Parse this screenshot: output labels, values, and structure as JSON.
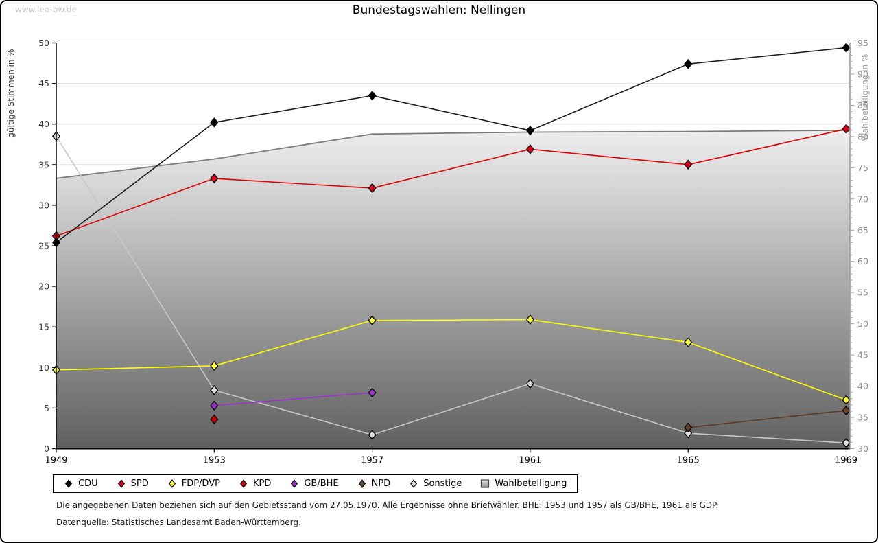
{
  "page": {
    "watermark": "www.leo-bw.de",
    "footnote1": "Die angegebenen Daten beziehen sich auf den Gebietsstand vom 27.05.1970. Alle Ergebnisse ohne Briefwähler. BHE: 1953 und 1957 als GB/BHE, 1961 als GDP.",
    "footnote2": "Datenquelle: Statistisches Landesamt Baden-Württemberg."
  },
  "chart_data": {
    "type": "line",
    "title": "Bundestagswahlen: Nellingen",
    "categories": [
      "1949",
      "1953",
      "1957",
      "1961",
      "1965",
      "1969"
    ],
    "left_axis": {
      "label": "gültige Stimmen in %",
      "min": 0,
      "max": 50,
      "step": 5
    },
    "right_axis": {
      "label": "Wahlbeteiligung in %",
      "min": 30,
      "max": 95,
      "step": 5,
      "minor_step": 1
    },
    "grid": true,
    "legend_position": "bottom",
    "series": [
      {
        "name": "Sonstige",
        "axis": "left",
        "marker": "diamond",
        "color": "#c8c8c8",
        "marker_fill": "#dcdcdc",
        "values": [
          38.5,
          7.2,
          1.7,
          8.0,
          1.9,
          0.7
        ]
      },
      {
        "name": "FDP/DVP",
        "axis": "left",
        "marker": "diamond",
        "color": "#ffff00",
        "marker_fill": "#ffff33",
        "values": [
          9.7,
          10.2,
          15.8,
          15.9,
          13.1,
          6.0
        ]
      },
      {
        "name": "GB/BHE",
        "axis": "left",
        "marker": "diamond",
        "color": "#9c33cc",
        "marker_fill": "#9c33cc",
        "values": [
          null,
          5.3,
          6.9,
          null,
          null,
          null
        ]
      },
      {
        "name": "NPD",
        "axis": "left",
        "marker": "diamond",
        "color": "#5c3a21",
        "marker_fill": "#6b4226",
        "values": [
          null,
          null,
          null,
          null,
          2.6,
          4.7
        ]
      },
      {
        "name": "KPD",
        "axis": "left",
        "marker": "diamond",
        "color": "#bb0000",
        "marker_fill": "#cc0000",
        "values": [
          null,
          3.6,
          null,
          null,
          null,
          null
        ]
      },
      {
        "name": "SPD",
        "axis": "left",
        "marker": "diamond",
        "color": "#dd0000",
        "marker_fill": "#e3001b",
        "values": [
          26.2,
          33.3,
          32.1,
          36.9,
          35.0,
          39.4
        ]
      },
      {
        "name": "CDU",
        "axis": "left",
        "marker": "diamond",
        "color": "#1a1a1a",
        "marker_fill": "#000000",
        "values": [
          25.4,
          40.2,
          43.5,
          39.2,
          47.4,
          49.4
        ]
      },
      {
        "name": "Wahlbeteiligung",
        "axis": "right",
        "marker": "square",
        "color": "#7a7a7a",
        "area": true,
        "area_top_color": "#eeeeee",
        "area_bottom_color": "#606060",
        "values": [
          73.3,
          76.4,
          80.4,
          80.7,
          80.8,
          81.0
        ]
      }
    ],
    "legend_order": [
      "CDU",
      "SPD",
      "FDP/DVP",
      "KPD",
      "GB/BHE",
      "NPD",
      "Sonstige",
      "Wahlbeteiligung"
    ],
    "grid_color": "#e0e0e0",
    "left_axis_color": "#000000",
    "right_axis_color": "#999999",
    "left_tick_label_color": "#3a3a3a",
    "right_tick_label_color": "#8c8c8c",
    "year_label_color": "#000000"
  }
}
